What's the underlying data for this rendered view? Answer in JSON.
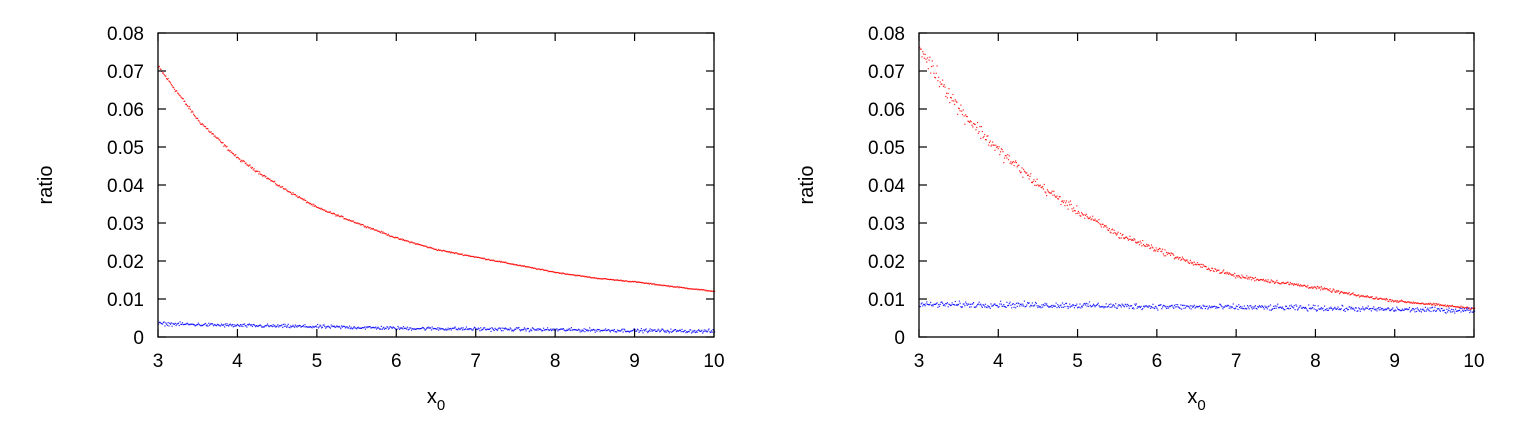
{
  "chart_data": [
    {
      "type": "scatter",
      "xlabel": "x",
      "xlabel_sub": "0",
      "ylabel": "ratio",
      "xlim": [
        3,
        10
      ],
      "ylim": [
        0,
        0.08
      ],
      "xticks": [
        "3",
        "4",
        "5",
        "6",
        "7",
        "8",
        "9",
        "10"
      ],
      "yticks": [
        "0",
        "0.01",
        "0.02",
        "0.03",
        "0.04",
        "0.05",
        "0.06",
        "0.07",
        "0.08"
      ],
      "grid": false,
      "legend": "none",
      "series": [
        {
          "color": "#ff0000",
          "x": [
            3.0,
            3.5,
            4.0,
            4.5,
            5.0,
            5.5,
            6.0,
            6.5,
            7.0,
            7.5,
            8.0,
            8.5,
            9.0,
            9.5,
            10.0
          ],
          "y": [
            0.071,
            0.057,
            0.047,
            0.04,
            0.034,
            0.03,
            0.026,
            0.023,
            0.021,
            0.019,
            0.017,
            0.0155,
            0.0145,
            0.0132,
            0.012
          ]
        },
        {
          "color": "#0000ff",
          "x": [
            3.0,
            4.0,
            5.0,
            6.0,
            7.0,
            8.0,
            9.0,
            10.0
          ],
          "y": [
            0.0035,
            0.003,
            0.0027,
            0.0023,
            0.0021,
            0.0019,
            0.0017,
            0.0015
          ]
        }
      ]
    },
    {
      "type": "scatter",
      "xlabel": "x",
      "xlabel_sub": "0",
      "ylabel": "ratio",
      "xlim": [
        3,
        10
      ],
      "ylim": [
        0,
        0.08
      ],
      "xticks": [
        "3",
        "4",
        "5",
        "6",
        "7",
        "8",
        "9",
        "10"
      ],
      "yticks": [
        "0",
        "0.01",
        "0.02",
        "0.03",
        "0.04",
        "0.05",
        "0.06",
        "0.07",
        "0.08"
      ],
      "grid": false,
      "legend": "none",
      "series": [
        {
          "color": "#ff0000",
          "x": [
            3.0,
            3.5,
            4.0,
            4.5,
            5.0,
            5.5,
            6.0,
            6.5,
            7.0,
            7.5,
            8.0,
            8.5,
            9.0,
            9.5,
            10.0
          ],
          "y": [
            0.076,
            0.06,
            0.049,
            0.04,
            0.033,
            0.027,
            0.023,
            0.019,
            0.016,
            0.0145,
            0.013,
            0.011,
            0.0095,
            0.0085,
            0.0075
          ]
        },
        {
          "color": "#0000ff",
          "x": [
            3.0,
            4.0,
            5.0,
            6.0,
            7.0,
            8.0,
            9.0,
            10.0
          ],
          "y": [
            0.0085,
            0.0085,
            0.0083,
            0.008,
            0.0078,
            0.0076,
            0.0072,
            0.007
          ]
        }
      ]
    }
  ]
}
